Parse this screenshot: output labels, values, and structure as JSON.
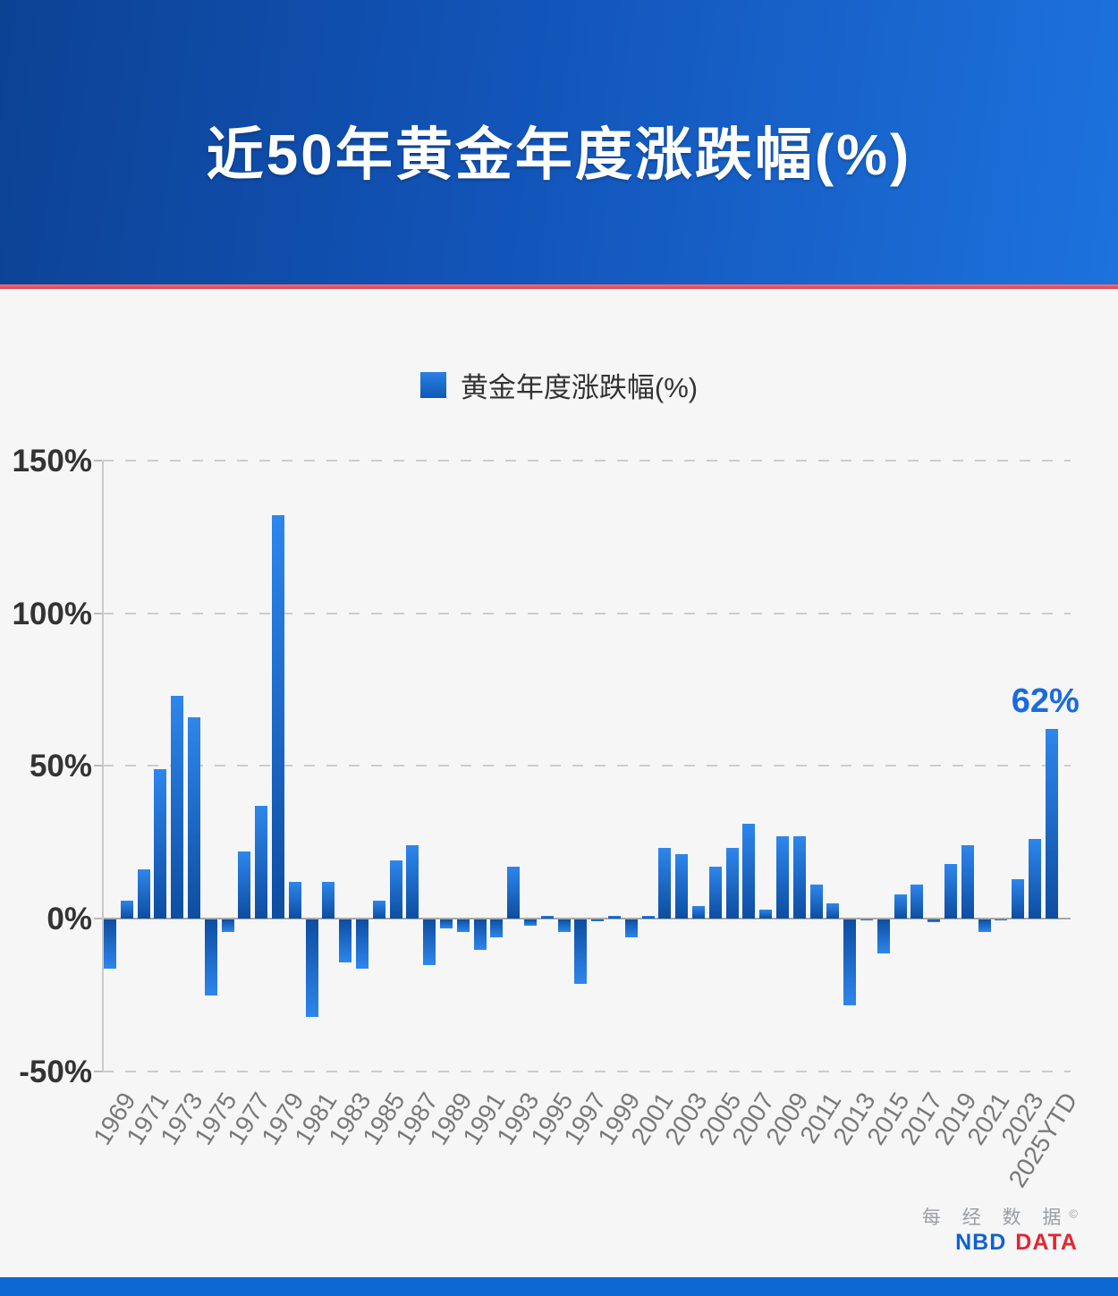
{
  "header": {
    "title": "近50年黄金年度涨跌幅(%)"
  },
  "legend": {
    "label": "黄金年度涨跌幅(%)",
    "swatch_color": "#1b74d8"
  },
  "chart_data": {
    "type": "bar",
    "title": "近50年黄金年度涨跌幅(%)",
    "series_name": "黄金年度涨跌幅(%)",
    "categories": [
      "1969",
      "1970",
      "1971",
      "1972",
      "1973",
      "1974",
      "1975",
      "1976",
      "1977",
      "1978",
      "1979",
      "1980",
      "1981",
      "1982",
      "1983",
      "1984",
      "1985",
      "1986",
      "1987",
      "1988",
      "1989",
      "1990",
      "1991",
      "1992",
      "1993",
      "1994",
      "1995",
      "1996",
      "1997",
      "1998",
      "1999",
      "2000",
      "2001",
      "2002",
      "2003",
      "2004",
      "2005",
      "2006",
      "2007",
      "2008",
      "2009",
      "2010",
      "2011",
      "2012",
      "2013",
      "2014",
      "2015",
      "2016",
      "2017",
      "2018",
      "2019",
      "2020",
      "2021",
      "2022",
      "2023",
      "2024",
      "2025YTD"
    ],
    "values": [
      -16,
      6,
      16,
      49,
      73,
      66,
      -25,
      -4,
      22,
      37,
      132,
      12,
      -32,
      12,
      -14,
      -16,
      6,
      19,
      24,
      -15,
      -3,
      -4,
      -10,
      -6,
      17,
      -2,
      1,
      -4,
      -21,
      -0.5,
      1,
      -6,
      1,
      23,
      21,
      4,
      17,
      23,
      31,
      3,
      27,
      27,
      11,
      5,
      -28,
      -0.2,
      -11,
      8,
      11,
      -1,
      18,
      24,
      -4,
      -0.3,
      13,
      26,
      62
    ],
    "xlabel": "",
    "ylabel": "",
    "ylim": [
      -50,
      150
    ],
    "ytick_values": [
      150,
      100,
      50,
      0,
      -50
    ],
    "ytick_labels": [
      "150%",
      "100%",
      "50%",
      "0%",
      "-50%"
    ],
    "x_tick_labels": [
      "1969",
      "1971",
      "1973",
      "1975",
      "1977",
      "1979",
      "1981",
      "1983",
      "1985",
      "1987",
      "1989",
      "1991",
      "1993",
      "1995",
      "1997",
      "1999",
      "2001",
      "2003",
      "2005",
      "2007",
      "2009",
      "2011",
      "2013",
      "2015",
      "2017",
      "2019",
      "2021",
      "2023",
      "2025YTD"
    ],
    "grid": "horizontal-dashed",
    "legend_position": "top-center",
    "annotation": {
      "category": "2025YTD",
      "text": "62%",
      "value": 62
    }
  },
  "watermark": {
    "line1": "每 经 数 据",
    "copyright": "©",
    "nbd": "NBD",
    "data": "DATA"
  },
  "colors": {
    "header_gradient_left": "#0c4294",
    "header_gradient_right": "#1d72dd",
    "divider_red": "#d94350",
    "bar_tip_blue": "#2e86ec",
    "bar_base_blue": "#0d4da1",
    "annotation_blue": "#1a6be0",
    "axis_label_dark": "#333333",
    "x_label_gray": "#787878",
    "footer_blue": "#0f67d2",
    "nbd_blue": "#0f62d2",
    "data_red": "#e22631",
    "background": "#f6f6f7"
  }
}
